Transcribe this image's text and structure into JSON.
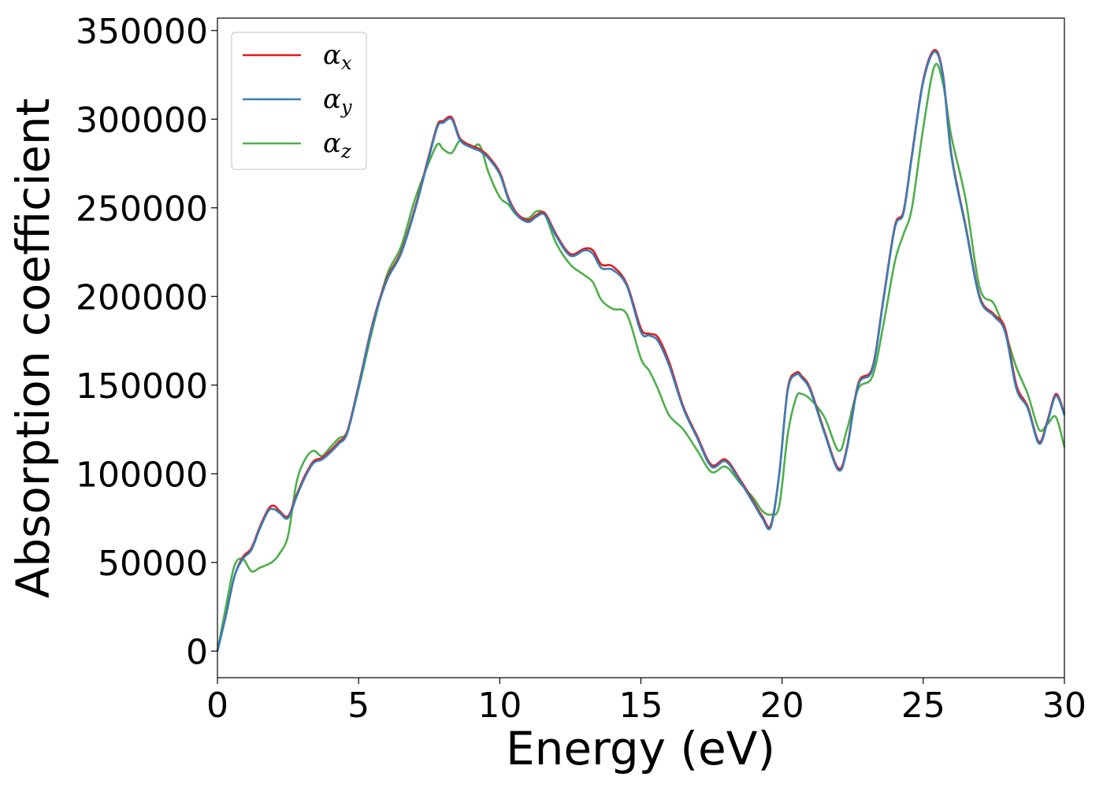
{
  "chart_data": {
    "type": "line",
    "xlabel": "Energy (eV)",
    "ylabel": "Absorption coefficient",
    "xlim": [
      0,
      30
    ],
    "ylim": [
      -15000,
      357000
    ],
    "grid": false,
    "legend_position": "top-left",
    "x_ticks": [
      0,
      5,
      10,
      15,
      20,
      25,
      30
    ],
    "x_tick_labels": [
      "0",
      "5",
      "10",
      "15",
      "20",
      "25",
      "30"
    ],
    "y_ticks": [
      0,
      50000,
      100000,
      150000,
      200000,
      250000,
      300000,
      350000
    ],
    "y_tick_labels": [
      "0",
      "50000",
      "100000",
      "150000",
      "200000",
      "250000",
      "300000",
      "350000"
    ],
    "series": [
      {
        "name": "α_x",
        "symbol": "α",
        "subscript": "x",
        "color": "#e41a1c",
        "x": [
          0,
          0.3,
          0.6,
          0.9,
          1.2,
          1.5,
          1.8,
          2.0,
          2.2,
          2.5,
          2.8,
          3.1,
          3.4,
          3.7,
          4.0,
          4.3,
          4.6,
          5.0,
          5.5,
          6.0,
          6.5,
          7.0,
          7.5,
          7.8,
          8.0,
          8.3,
          8.6,
          9.0,
          9.3,
          9.6,
          10.0,
          10.3,
          10.6,
          11.0,
          11.3,
          11.6,
          12.0,
          12.5,
          13.0,
          13.3,
          13.6,
          14.0,
          14.5,
          15.0,
          15.3,
          15.6,
          16.0,
          16.5,
          17.0,
          17.5,
          18.0,
          18.5,
          19.0,
          19.3,
          19.6,
          19.9,
          20.2,
          20.5,
          20.7,
          21.0,
          21.5,
          22.0,
          22.3,
          22.7,
          23.2,
          23.6,
          24.0,
          24.3,
          24.6,
          25.0,
          25.4,
          25.7,
          26.0,
          26.5,
          27.0,
          27.5,
          27.9,
          28.3,
          28.7,
          29.1,
          29.4,
          29.7,
          30.0
        ],
        "values": [
          0,
          20000,
          42000,
          53000,
          58000,
          70000,
          80000,
          82000,
          79000,
          76000,
          88000,
          99000,
          107000,
          109000,
          113000,
          118000,
          124000,
          150000,
          185000,
          210000,
          225000,
          250000,
          280000,
          297000,
          299000,
          301000,
          289000,
          285000,
          283000,
          279000,
          270000,
          256000,
          247000,
          243000,
          246000,
          247000,
          235000,
          224000,
          227000,
          226000,
          218000,
          217000,
          207000,
          182000,
          179000,
          177000,
          163000,
          138000,
          121000,
          105000,
          108000,
          97000,
          84000,
          76000,
          71000,
          100000,
          148000,
          157000,
          155000,
          148000,
          124000,
          103000,
          115000,
          151000,
          160000,
          200000,
          240000,
          248000,
          280000,
          322000,
          339000,
          325000,
          280000,
          240000,
          200000,
          190000,
          182000,
          150000,
          138000,
          118000,
          130000,
          145000,
          134000
        ]
      },
      {
        "name": "α_y",
        "symbol": "α",
        "subscript": "y",
        "color": "#377eb8",
        "x": [
          0,
          0.3,
          0.6,
          0.9,
          1.2,
          1.5,
          1.8,
          2.0,
          2.2,
          2.5,
          2.8,
          3.1,
          3.4,
          3.7,
          4.0,
          4.3,
          4.6,
          5.0,
          5.5,
          6.0,
          6.5,
          7.0,
          7.5,
          7.8,
          8.0,
          8.3,
          8.6,
          9.0,
          9.3,
          9.6,
          10.0,
          10.3,
          10.6,
          11.0,
          11.3,
          11.6,
          12.0,
          12.5,
          13.0,
          13.3,
          13.6,
          14.0,
          14.5,
          15.0,
          15.3,
          15.6,
          16.0,
          16.5,
          17.0,
          17.5,
          18.0,
          18.5,
          19.0,
          19.3,
          19.6,
          19.9,
          20.2,
          20.5,
          20.7,
          21.0,
          21.5,
          22.0,
          22.3,
          22.7,
          23.2,
          23.6,
          24.0,
          24.3,
          24.6,
          25.0,
          25.4,
          25.7,
          26.0,
          26.5,
          27.0,
          27.5,
          27.9,
          28.3,
          28.7,
          29.1,
          29.4,
          29.7,
          30.0
        ],
        "values": [
          0,
          20000,
          42000,
          52000,
          57000,
          69000,
          79000,
          80000,
          78000,
          75000,
          87000,
          98000,
          106000,
          108000,
          112000,
          117000,
          123000,
          149000,
          184000,
          209000,
          224000,
          249000,
          279000,
          296000,
          298000,
          300000,
          288000,
          284000,
          282000,
          278000,
          269000,
          255000,
          246000,
          242000,
          245000,
          246000,
          234000,
          223000,
          226000,
          224000,
          216000,
          215000,
          206000,
          180000,
          178000,
          175000,
          161000,
          137000,
          120000,
          104000,
          107000,
          96000,
          83000,
          75000,
          70000,
          100000,
          147000,
          156000,
          154000,
          147000,
          123000,
          102000,
          114000,
          150000,
          159000,
          199000,
          239000,
          247000,
          279000,
          321000,
          338000,
          324000,
          279000,
          239000,
          199000,
          189000,
          180000,
          148000,
          137000,
          117000,
          129000,
          144000,
          133000
        ]
      },
      {
        "name": "α_z",
        "symbol": "α",
        "subscript": "z",
        "color": "#4daf4a",
        "x": [
          0,
          0.3,
          0.6,
          0.9,
          1.2,
          1.5,
          1.8,
          2.0,
          2.2,
          2.5,
          2.8,
          3.1,
          3.4,
          3.7,
          4.0,
          4.3,
          4.6,
          5.0,
          5.5,
          6.0,
          6.5,
          7.0,
          7.5,
          7.8,
          8.0,
          8.3,
          8.6,
          9.0,
          9.3,
          9.6,
          10.0,
          10.3,
          10.6,
          11.0,
          11.3,
          11.6,
          12.0,
          12.5,
          13.0,
          13.3,
          13.6,
          14.0,
          14.5,
          15.0,
          15.3,
          15.6,
          16.0,
          16.5,
          17.0,
          17.5,
          18.0,
          18.5,
          19.0,
          19.3,
          19.6,
          19.9,
          20.2,
          20.5,
          20.7,
          21.0,
          21.5,
          22.0,
          22.3,
          22.7,
          23.2,
          23.6,
          24.0,
          24.3,
          24.6,
          25.0,
          25.4,
          25.7,
          26.0,
          26.5,
          27.0,
          27.5,
          27.9,
          28.3,
          28.7,
          29.1,
          29.4,
          29.7,
          30.0
        ],
        "values": [
          0,
          25000,
          48000,
          52000,
          45000,
          47000,
          49000,
          51000,
          55000,
          65000,
          95000,
          108000,
          113000,
          110000,
          115000,
          120000,
          124000,
          148000,
          182000,
          212000,
          228000,
          255000,
          276000,
          286000,
          283000,
          281000,
          288000,
          284000,
          285000,
          270000,
          256000,
          252000,
          246000,
          244000,
          248000,
          246000,
          230000,
          218000,
          212000,
          208000,
          198000,
          193000,
          190000,
          165000,
          158000,
          148000,
          133000,
          125000,
          113000,
          101000,
          104000,
          95000,
          86000,
          79000,
          77000,
          82000,
          122000,
          143000,
          145000,
          142000,
          132000,
          113000,
          125000,
          148000,
          155000,
          185000,
          220000,
          235000,
          250000,
          295000,
          330000,
          320000,
          290000,
          255000,
          205000,
          196000,
          180000,
          160000,
          145000,
          125000,
          128000,
          132000,
          115000
        ]
      }
    ]
  }
}
